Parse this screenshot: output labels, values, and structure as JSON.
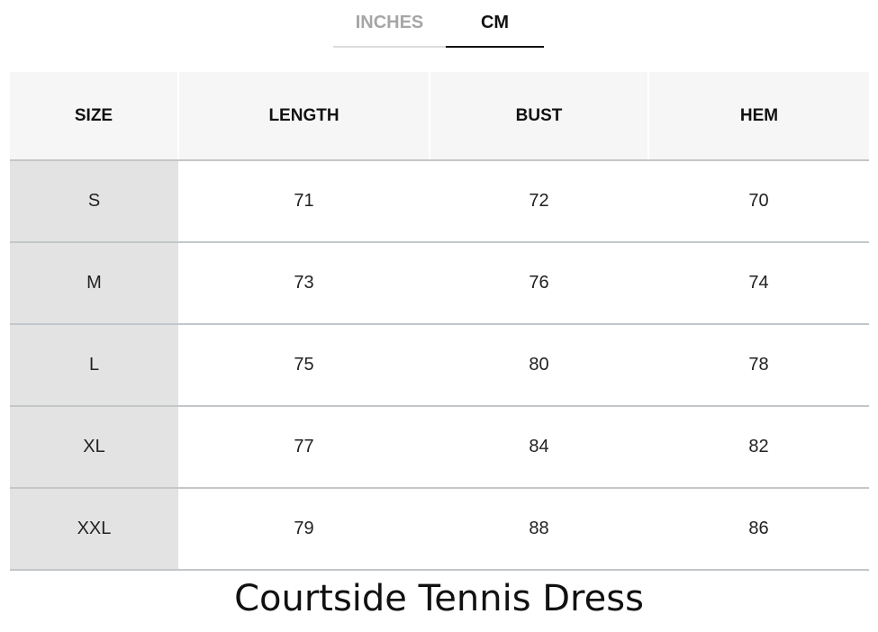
{
  "tabs": [
    {
      "label": "INCHES",
      "active": false
    },
    {
      "label": "CM",
      "active": true
    }
  ],
  "table": {
    "headers": [
      "SIZE",
      "LENGTH",
      "BUST",
      "HEM"
    ],
    "rows": [
      [
        "S",
        "71",
        "72",
        "70"
      ],
      [
        "M",
        "73",
        "76",
        "74"
      ],
      [
        "L",
        "75",
        "80",
        "78"
      ],
      [
        "XL",
        "77",
        "84",
        "82"
      ],
      [
        "XXL",
        "79",
        "88",
        "86"
      ]
    ]
  },
  "title": "Courtside Tennis Dress"
}
